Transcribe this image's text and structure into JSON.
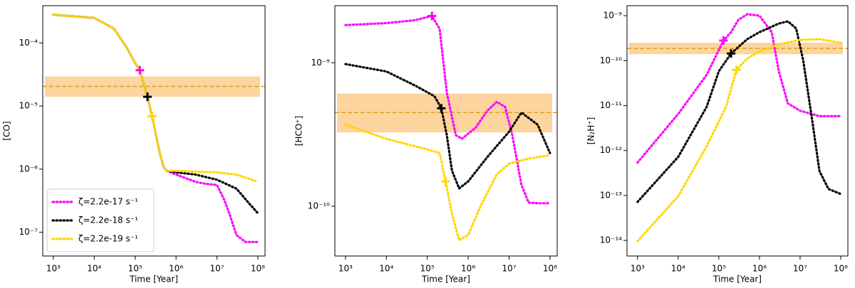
{
  "chart_data": [
    {
      "type": "line",
      "xlabel": "Time [Year]",
      "ylabel": "[CO]",
      "log_x": true,
      "log_y": true,
      "xlim": [
        550,
        150000000
      ],
      "ylim": [
        4.2e-08,
        0.00039
      ],
      "xticks": [
        {
          "value": 1000,
          "label": "10³"
        },
        {
          "value": 10000,
          "label": "10⁴"
        },
        {
          "value": 100000,
          "label": "10⁵"
        },
        {
          "value": 1000000,
          "label": "10⁶"
        },
        {
          "value": 10000000,
          "label": "10⁷"
        },
        {
          "value": 100000000,
          "label": "10⁸"
        }
      ],
      "yticks": [
        {
          "value": 1e-07,
          "label": "10⁻⁷"
        },
        {
          "value": 1e-06,
          "label": "10⁻⁶"
        },
        {
          "value": 1e-05,
          "label": "10⁻⁵"
        },
        {
          "value": 0.0001,
          "label": "10⁻⁴"
        }
      ],
      "legend": "lower left",
      "band": {
        "low": 1.4e-05,
        "high": 2.95e-05,
        "line": 2.05e-05,
        "color": "#fdd49e",
        "line_color": "#d9a022"
      },
      "series": [
        {
          "name": "ζ=2.2e-17 s⁻¹",
          "color": "#ff00ff",
          "x": [
            1000,
            10000,
            30000,
            60000,
            100000,
            130000,
            200000,
            260000,
            400000,
            500000,
            600000,
            1000000,
            3000000,
            5000000,
            10000000,
            15000000,
            20000000,
            30000000,
            50000000,
            100000000
          ],
          "values": [
            0.00028,
            0.00025,
            0.00017,
            8.8e-05,
            4.8e-05,
            3.7e-05,
            1.4e-05,
            6.9e-06,
            1.8e-06,
            1.06e-06,
            9.4e-07,
            8.2e-07,
            6.3e-07,
            5.9e-07,
            5.6e-07,
            3.3e-07,
            2e-07,
            9e-08,
            7e-08,
            7e-08
          ]
        },
        {
          "name": "ζ=2.2e-18 s⁻¹",
          "color": "#000000",
          "x": [
            1000,
            10000,
            30000,
            60000,
            100000,
            130000,
            200000,
            260000,
            400000,
            500000,
            600000,
            1000000,
            3000000,
            10000000,
            30000000,
            60000000,
            100000000
          ],
          "values": [
            0.00028,
            0.00025,
            0.00017,
            8.8e-05,
            4.8e-05,
            3.7e-05,
            1.4e-05,
            6.9e-06,
            1.8e-06,
            1.06e-06,
            9.4e-07,
            8.9e-07,
            8.2e-07,
            6.8e-07,
            4.9e-07,
            2.9e-07,
            2e-07
          ]
        },
        {
          "name": "ζ=2.2e-19 s⁻¹",
          "color": "#ffd700",
          "x": [
            1000,
            10000,
            30000,
            60000,
            100000,
            130000,
            200000,
            260000,
            400000,
            500000,
            600000,
            1000000,
            10000000,
            30000000,
            100000000
          ],
          "values": [
            0.00028,
            0.00025,
            0.00017,
            8.8e-05,
            4.8e-05,
            3.7e-05,
            1.4e-05,
            6.9e-06,
            1.8e-06,
            1.06e-06,
            9.4e-07,
            9.4e-07,
            8.9e-07,
            8.2e-07,
            6.3e-07
          ]
        }
      ],
      "markers": [
        {
          "color": "#ff00ff",
          "x": 130000,
          "value": 3.7e-05
        },
        {
          "color": "#000000",
          "x": 200000,
          "value": 1.4e-05
        },
        {
          "color": "#ffd700",
          "x": 260000,
          "value": 6.9e-06
        }
      ]
    },
    {
      "type": "line",
      "xlabel": "Time [Year]",
      "ylabel": "[HCO⁺]",
      "log_x": true,
      "log_y": true,
      "xlim": [
        550,
        150000000
      ],
      "ylim": [
        4.5e-11,
        2.5e-09
      ],
      "xticks": [
        {
          "value": 1000,
          "label": "10³"
        },
        {
          "value": 10000,
          "label": "10⁴"
        },
        {
          "value": 100000,
          "label": "10⁵"
        },
        {
          "value": 1000000,
          "label": "10⁶"
        },
        {
          "value": 10000000,
          "label": "10⁷"
        },
        {
          "value": 100000000,
          "label": "10⁸"
        }
      ],
      "yticks": [
        {
          "value": 1e-10,
          "label": "10⁻¹⁰"
        },
        {
          "value": 1e-09,
          "label": "10⁻⁹"
        }
      ],
      "band": {
        "low": 3.27e-10,
        "high": 6.1e-10,
        "line": 4.5e-10,
        "color": "#fdd49e",
        "line_color": "#d9a022"
      },
      "series": [
        {
          "color": "#ff00ff",
          "x": [
            1000,
            10000,
            50000,
            130000,
            200000,
            300000,
            500000,
            700000,
            1500000,
            3000000,
            5000000,
            8000000,
            12000000,
            20000000,
            30000000,
            50000000,
            100000000
          ],
          "values": [
            1.83e-09,
            1.89e-09,
            1.98e-09,
            2.12e-09,
            1.73e-09,
            6.2e-10,
            3.13e-10,
            2.95e-10,
            3.51e-10,
            4.66e-10,
            5.34e-10,
            4.93e-10,
            3.13e-10,
            1.41e-10,
            1.06e-10,
            1.05e-10,
            1.05e-10
          ]
        },
        {
          "color": "#000000",
          "x": [
            1000,
            10000,
            50000,
            150000,
            220000,
            300000,
            400000,
            600000,
            1000000,
            3000000,
            10000000,
            20000000,
            50000000,
            100000000
          ],
          "values": [
            9.8e-10,
            8.7e-10,
            6.95e-10,
            5.85e-10,
            4.82e-10,
            3.13e-10,
            1.77e-10,
            1.33e-10,
            1.49e-10,
            2.22e-10,
            3.31e-10,
            4.5e-10,
            3.7e-10,
            2.35e-10
          ]
        },
        {
          "color": "#ffd700",
          "x": [
            1000,
            10000,
            100000,
            200000,
            280000,
            400000,
            600000,
            1000000,
            2000000,
            5000000,
            10000000,
            30000000,
            100000000
          ],
          "values": [
            3.7e-10,
            2.95e-10,
            2.49e-10,
            2.35e-10,
            1.49e-10,
            8.9e-11,
            5.8e-11,
            6.3e-11,
            1e-10,
            1.67e-10,
            1.98e-10,
            2.15e-10,
            2.27e-10
          ]
        }
      ],
      "markers": [
        {
          "color": "#ff00ff",
          "x": 130000,
          "value": 2.12e-09
        },
        {
          "color": "#000000",
          "x": 220000,
          "value": 4.82e-10
        },
        {
          "color": "#ffd700",
          "x": 280000,
          "value": 1.49e-10
        }
      ]
    },
    {
      "type": "line",
      "xlabel": "Time [Year]",
      "ylabel": "[N₂H⁺]",
      "log_x": true,
      "log_y": true,
      "xlim": [
        550,
        150000000
      ],
      "ylim": [
        4.5e-15,
        1.67e-09
      ],
      "xticks": [
        {
          "value": 1000,
          "label": "10³"
        },
        {
          "value": 10000,
          "label": "10⁴"
        },
        {
          "value": 100000,
          "label": "10⁵"
        },
        {
          "value": 1000000,
          "label": "10⁶"
        },
        {
          "value": 10000000,
          "label": "10⁷"
        },
        {
          "value": 100000000,
          "label": "10⁸"
        }
      ],
      "yticks": [
        {
          "value": 1e-14,
          "label": "10⁻¹⁴"
        },
        {
          "value": 1e-13,
          "label": "10⁻¹³"
        },
        {
          "value": 1e-12,
          "label": "10⁻¹²"
        },
        {
          "value": 1e-11,
          "label": "10⁻¹¹"
        },
        {
          "value": 1e-10,
          "label": "10⁻¹⁰"
        },
        {
          "value": 1e-09,
          "label": "10⁻⁹"
        }
      ],
      "band": {
        "low": 1.39e-10,
        "high": 2.5e-10,
        "line": 1.87e-10,
        "color": "#fdd49e",
        "line_color": "#d9a022"
      },
      "series": [
        {
          "color": "#ff00ff",
          "x": [
            1000,
            10000,
            50000,
            130000,
            200000,
            300000,
            500000,
            1000000,
            2000000,
            3000000,
            5000000,
            10000000,
            30000000,
            100000000
          ],
          "values": [
            5.4e-13,
            6.5e-12,
            4.8e-11,
            2.8e-10,
            4.3e-10,
            8e-10,
            1.08e-09,
            1e-09,
            4.3e-10,
            5.8e-11,
            1.12e-11,
            7.7e-12,
            5.8e-12,
            5.8e-12
          ]
        },
        {
          "color": "#000000",
          "x": [
            1000,
            10000,
            50000,
            100000,
            200000,
            500000,
            1000000,
            3000000,
            5000000,
            8000000,
            12000000,
            20000000,
            30000000,
            50000000,
            100000000
          ],
          "values": [
            7.2e-14,
            7.2e-13,
            9.3e-12,
            5.8e-11,
            1.44e-10,
            3e-10,
            4.3e-10,
            6.7e-10,
            7.5e-10,
            5.2e-10,
            1e-10,
            4.5e-12,
            3.5e-13,
            1.39e-13,
            1.08e-13
          ]
        },
        {
          "color": "#ffd700",
          "x": [
            1000,
            10000,
            50000,
            150000,
            270000,
            500000,
            1000000,
            3000000,
            10000000,
            30000000,
            100000000
          ],
          "values": [
            9.6e-15,
            9.6e-14,
            1.24e-12,
            9.3e-12,
            6.2e-11,
            1.12e-10,
            1.6e-10,
            2.3e-10,
            2.9e-10,
            3e-10,
            2.5e-10
          ]
        }
      ],
      "markers": [
        {
          "color": "#ff00ff",
          "x": 130000,
          "value": 2.8e-10
        },
        {
          "color": "#000000",
          "x": 200000,
          "value": 1.44e-10
        },
        {
          "color": "#ffd700",
          "x": 270000,
          "value": 6.2e-11
        }
      ]
    }
  ]
}
